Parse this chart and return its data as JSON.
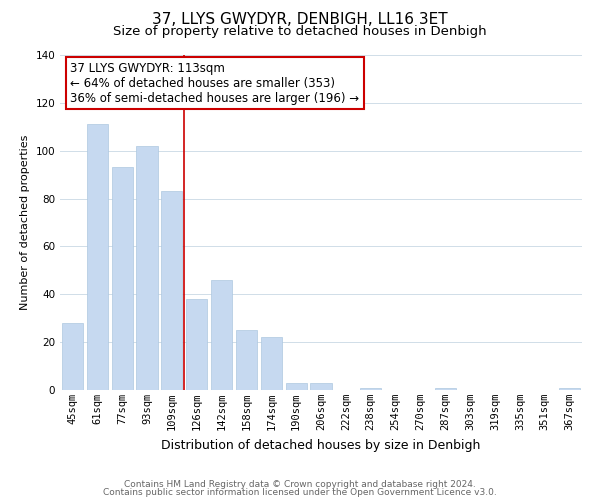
{
  "title": "37, LLYS GWYDYR, DENBIGH, LL16 3ET",
  "subtitle": "Size of property relative to detached houses in Denbigh",
  "xlabel": "Distribution of detached houses by size in Denbigh",
  "ylabel": "Number of detached properties",
  "bar_labels": [
    "45sqm",
    "61sqm",
    "77sqm",
    "93sqm",
    "109sqm",
    "126sqm",
    "142sqm",
    "158sqm",
    "174sqm",
    "190sqm",
    "206sqm",
    "222sqm",
    "238sqm",
    "254sqm",
    "270sqm",
    "287sqm",
    "303sqm",
    "319sqm",
    "335sqm",
    "351sqm",
    "367sqm"
  ],
  "bar_values": [
    28,
    111,
    93,
    102,
    83,
    38,
    46,
    25,
    22,
    3,
    3,
    0,
    1,
    0,
    0,
    1,
    0,
    0,
    0,
    0,
    1
  ],
  "bar_color": "#c6d9f0",
  "red_line_x": 4,
  "annotation_text": "37 LLYS GWYDYR: 113sqm\n← 64% of detached houses are smaller (353)\n36% of semi-detached houses are larger (196) →",
  "annotation_box_color": "#ffffff",
  "annotation_box_edge_color": "#cc0000",
  "ylim": [
    0,
    140
  ],
  "yticks": [
    0,
    20,
    40,
    60,
    80,
    100,
    120,
    140
  ],
  "footer_line1": "Contains HM Land Registry data © Crown copyright and database right 2024.",
  "footer_line2": "Contains public sector information licensed under the Open Government Licence v3.0.",
  "background_color": "#ffffff",
  "grid_color": "#d0dde8",
  "title_fontsize": 11,
  "subtitle_fontsize": 9.5,
  "xlabel_fontsize": 9,
  "ylabel_fontsize": 8,
  "tick_fontsize": 7.5,
  "annotation_fontsize": 8.5,
  "footer_fontsize": 6.5
}
